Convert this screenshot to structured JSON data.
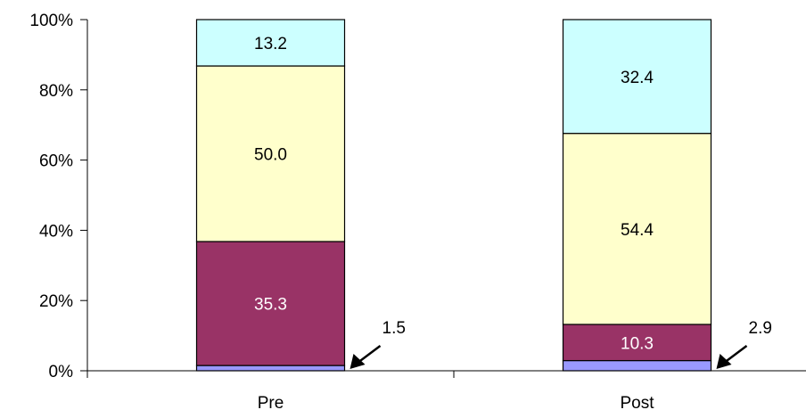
{
  "chart_data": {
    "type": "bar",
    "stacked": true,
    "percent_stacked": true,
    "categories": [
      "Pre",
      "Post"
    ],
    "series": [
      {
        "values": [
          1.5,
          2.9
        ],
        "color": "#9999FF",
        "label_color": "#000000"
      },
      {
        "values": [
          35.3,
          10.3
        ],
        "color": "#993366",
        "label_color": "#FFFFFF"
      },
      {
        "values": [
          50.0,
          54.4
        ],
        "color": "#FFFFCC",
        "label_color": "#000000"
      },
      {
        "values": [
          13.2,
          32.4
        ],
        "color": "#CCFFFF",
        "label_color": "#000000"
      }
    ],
    "data_labels": [
      [
        "1.5",
        "35.3",
        "50.0",
        "13.2"
      ],
      [
        "2.9",
        "10.3",
        "54.4",
        "32.4"
      ]
    ],
    "callout_series_index": 0,
    "ylim": [
      0,
      100
    ],
    "yticks": [
      "0%",
      "20%",
      "40%",
      "60%",
      "80%",
      "100%"
    ],
    "ytick_values": [
      0,
      20,
      40,
      60,
      80,
      100
    ],
    "grid": false,
    "legend": "none"
  }
}
